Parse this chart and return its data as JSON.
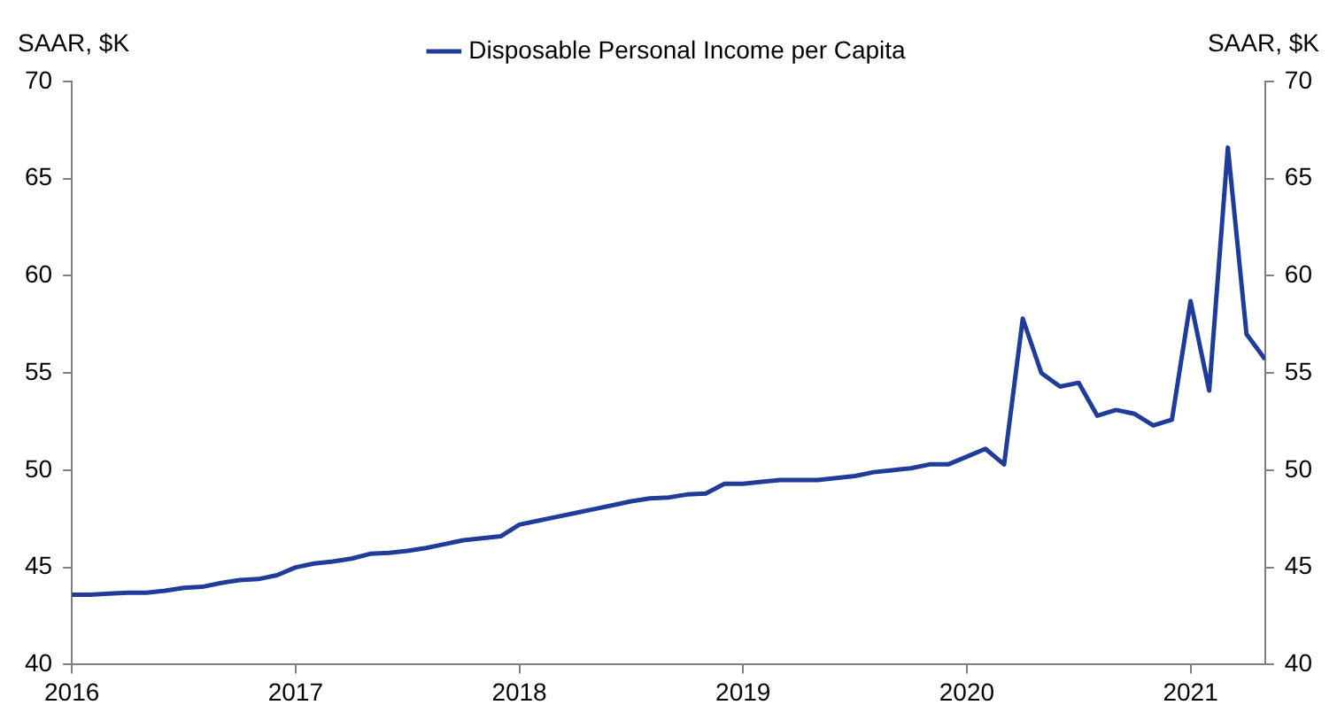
{
  "chart_data": {
    "type": "line",
    "ylabel": "SAAR, $K",
    "y2label": "SAAR, $K",
    "x": [
      "2016-01",
      "2016-02",
      "2016-03",
      "2016-04",
      "2016-05",
      "2016-06",
      "2016-07",
      "2016-08",
      "2016-09",
      "2016-10",
      "2016-11",
      "2016-12",
      "2017-01",
      "2017-02",
      "2017-03",
      "2017-04",
      "2017-05",
      "2017-06",
      "2017-07",
      "2017-08",
      "2017-09",
      "2017-10",
      "2017-11",
      "2017-12",
      "2018-01",
      "2018-02",
      "2018-03",
      "2018-04",
      "2018-05",
      "2018-06",
      "2018-07",
      "2018-08",
      "2018-09",
      "2018-10",
      "2018-11",
      "2018-12",
      "2019-01",
      "2019-02",
      "2019-03",
      "2019-04",
      "2019-05",
      "2019-06",
      "2019-07",
      "2019-08",
      "2019-09",
      "2019-10",
      "2019-11",
      "2019-12",
      "2020-01",
      "2020-02",
      "2020-03",
      "2020-04",
      "2020-05",
      "2020-06",
      "2020-07",
      "2020-08",
      "2020-09",
      "2020-10",
      "2020-11",
      "2020-12",
      "2021-01",
      "2021-02",
      "2021-03",
      "2021-04",
      "2021-05"
    ],
    "series": [
      {
        "name": "Disposable Personal Income per Capita",
        "color": "#1f3c99",
        "values": [
          43.6,
          43.6,
          43.65,
          43.7,
          43.7,
          43.8,
          43.95,
          44.0,
          44.2,
          44.35,
          44.4,
          44.6,
          45.0,
          45.2,
          45.3,
          45.45,
          45.7,
          45.75,
          45.85,
          46.0,
          46.2,
          46.4,
          46.5,
          46.6,
          47.2,
          47.4,
          47.6,
          47.8,
          48.0,
          48.2,
          48.4,
          48.55,
          48.6,
          48.75,
          48.8,
          49.3,
          49.3,
          49.4,
          49.5,
          49.5,
          49.5,
          49.6,
          49.7,
          49.9,
          50.0,
          50.1,
          50.3,
          50.3,
          50.7,
          51.1,
          50.3,
          57.8,
          55.0,
          54.3,
          54.5,
          52.8,
          53.1,
          52.9,
          52.3,
          52.6,
          58.7,
          54.1,
          66.6,
          57.0,
          55.7
        ]
      }
    ],
    "xlim": [
      "2016-01",
      "2021-05"
    ],
    "xticks": [
      "2016",
      "2017",
      "2018",
      "2019",
      "2020",
      "2021"
    ],
    "ylim": [
      40,
      70
    ],
    "yticks": [
      40,
      45,
      50,
      55,
      60,
      65,
      70
    ],
    "y2lim": [
      40,
      70
    ],
    "y2ticks": [
      40,
      45,
      50,
      55,
      60,
      65,
      70
    ],
    "grid": false,
    "legend": "top",
    "marker": "none",
    "line_style": "solid"
  }
}
